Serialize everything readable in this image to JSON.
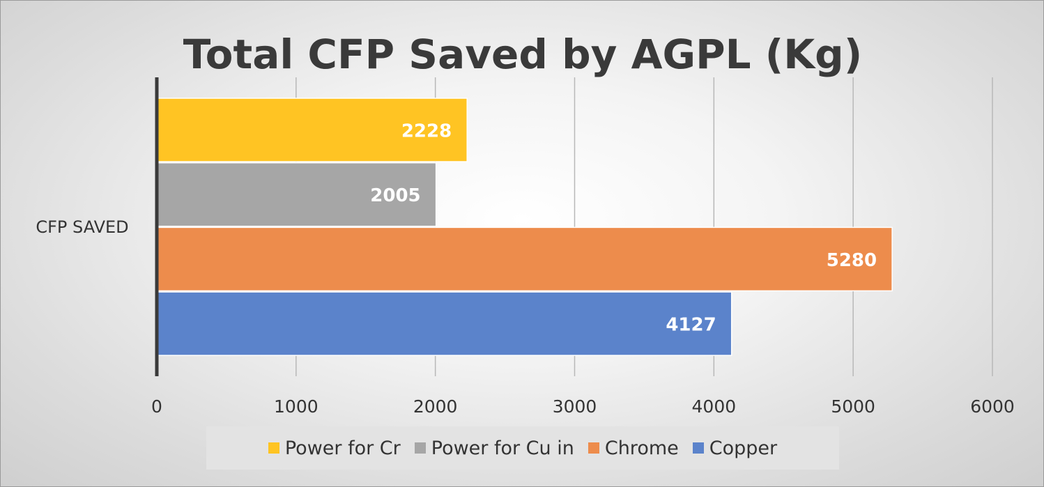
{
  "chart_data": {
    "type": "bar",
    "orientation": "horizontal",
    "title": "Total CFP Saved by AGPL (Kg)",
    "categories": [
      "CFP SAVED"
    ],
    "xlim": [
      0,
      6000
    ],
    "x_ticks": [
      "0",
      "1000",
      "2000",
      "3000",
      "4000",
      "5000",
      "6000"
    ],
    "grid": true,
    "legend_position": "bottom",
    "series": [
      {
        "name": "Power for Cr",
        "values": [
          2228
        ],
        "label": "2228",
        "color": "#ffc423"
      },
      {
        "name": "Power for Cu in",
        "values": [
          2005
        ],
        "label": "2005",
        "color": "#a6a6a6"
      },
      {
        "name": "Chrome",
        "values": [
          5280
        ],
        "label": "5280",
        "color": "#ed8c4c"
      },
      {
        "name": "Copper",
        "values": [
          4127
        ],
        "label": "4127",
        "color": "#5b83cb"
      }
    ],
    "legend": [
      "Power for Cr",
      "Power for Cu in",
      "Chrome",
      "Copper"
    ]
  },
  "colors": {
    "axis": "#3a3a3a",
    "grid": "#b8b8b8",
    "title": "#3a3a3a",
    "data_label": "#ffffff",
    "tick_label": "#333333"
  }
}
